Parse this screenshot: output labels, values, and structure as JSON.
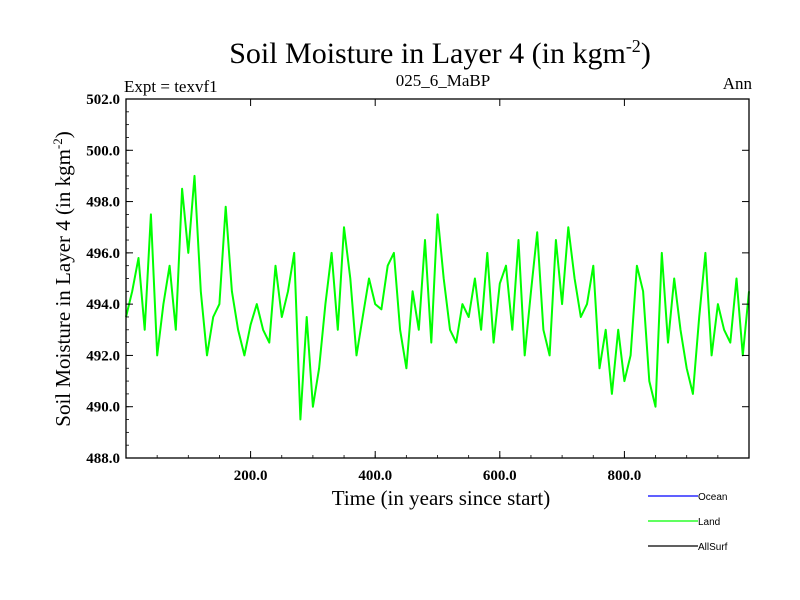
{
  "chart_data": {
    "type": "line",
    "title": "Soil Moisture in Layer 4 (in kgm",
    "title_sup": "-2",
    "title_suffix": ")",
    "left_label": "Expt = texvf1",
    "center_label": "025_6_MaBP",
    "right_label": "Ann",
    "xlabel": "Time (in years since start)",
    "ylabel": "Soil Moisture in Layer 4 (in kgm",
    "ylabel_sup": "-2",
    "ylabel_suffix": ")",
    "xlim": [
      0,
      1000
    ],
    "ylim": [
      488.0,
      502.0
    ],
    "x_ticks": [
      200,
      400,
      600,
      800
    ],
    "x_tick_labels": [
      "200.0",
      "400.0",
      "600.0",
      "800.0"
    ],
    "y_ticks": [
      488,
      490,
      492,
      494,
      496,
      498,
      500,
      502
    ],
    "y_tick_labels": [
      "488.0",
      "490.0",
      "492.0",
      "494.0",
      "496.0",
      "498.0",
      "500.0",
      "502.0"
    ],
    "legend": [
      {
        "name": "Ocean",
        "color": "#0000ff"
      },
      {
        "name": "Land",
        "color": "#00ff00"
      },
      {
        "name": "AllSurf",
        "color": "#000000"
      }
    ],
    "series": [
      {
        "name": "Land",
        "color": "#00ff00",
        "x": [
          0,
          10,
          20,
          30,
          40,
          50,
          60,
          70,
          80,
          90,
          100,
          110,
          120,
          130,
          140,
          150,
          160,
          170,
          180,
          190,
          200,
          210,
          220,
          230,
          240,
          250,
          260,
          270,
          280,
          290,
          300,
          310,
          320,
          330,
          340,
          350,
          360,
          370,
          380,
          390,
          400,
          410,
          420,
          430,
          440,
          450,
          460,
          470,
          480,
          490,
          500,
          510,
          520,
          530,
          540,
          550,
          560,
          570,
          580,
          590,
          600,
          610,
          620,
          630,
          640,
          650,
          660,
          670,
          680,
          690,
          700,
          710,
          720,
          730,
          740,
          750,
          760,
          770,
          780,
          790,
          800,
          810,
          820,
          830,
          840,
          850,
          860,
          870,
          880,
          890,
          900,
          910,
          920,
          930,
          940,
          950,
          960,
          970,
          980,
          990,
          1000
        ],
        "values": [
          493.5,
          494.5,
          495.8,
          493.0,
          497.5,
          492.0,
          494.0,
          495.5,
          493.0,
          498.5,
          496.0,
          499.0,
          494.5,
          492.0,
          493.5,
          494.0,
          497.8,
          494.5,
          493.0,
          492.0,
          493.2,
          494.0,
          493.0,
          492.5,
          495.5,
          493.5,
          494.5,
          496.0,
          489.5,
          493.5,
          490.0,
          491.5,
          494.0,
          496.0,
          493.0,
          497.0,
          495.0,
          492.0,
          493.5,
          495.0,
          494.0,
          493.8,
          495.5,
          496.0,
          493.0,
          491.5,
          494.5,
          493.0,
          496.5,
          492.5,
          497.5,
          495.0,
          493.0,
          492.5,
          494.0,
          493.5,
          495.0,
          493.0,
          496.0,
          492.5,
          494.8,
          495.5,
          493.0,
          496.5,
          492.0,
          494.5,
          496.8,
          493.0,
          492.0,
          496.5,
          494.0,
          497.0,
          495.0,
          493.5,
          494.0,
          495.5,
          491.5,
          493.0,
          490.5,
          493.0,
          491.0,
          492.0,
          495.5,
          494.5,
          491.0,
          490.0,
          496.0,
          492.5,
          495.0,
          493.0,
          491.5,
          490.5,
          493.5,
          496.0,
          492.0,
          494.0,
          493.0,
          492.5,
          495.0,
          492.0,
          494.5
        ]
      }
    ]
  }
}
